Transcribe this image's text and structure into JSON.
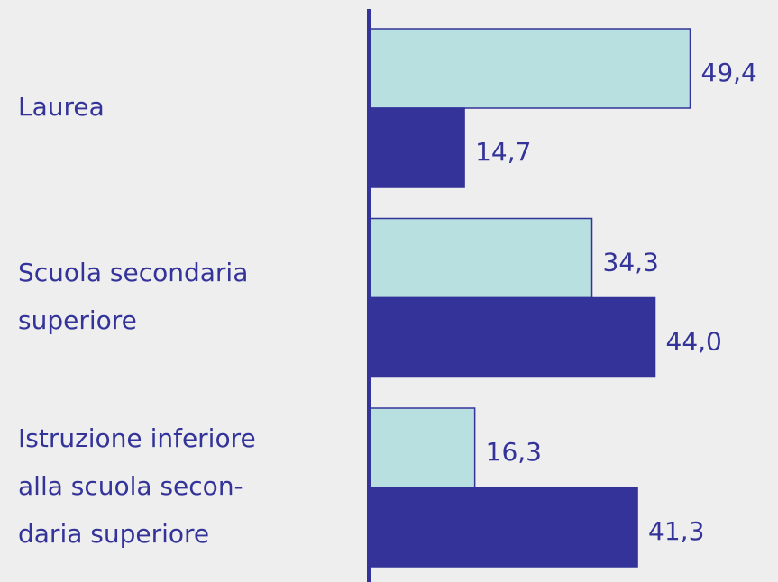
{
  "chart_data": {
    "type": "bar",
    "orientation": "horizontal",
    "categories": [
      [
        "Laurea"
      ],
      [
        "Scuola secondaria",
        "superiore"
      ],
      [
        "Istruzione inferiore",
        "alla scuola secon-",
        "daria superiore"
      ]
    ],
    "series": [
      {
        "color": "#b8e0e0",
        "values": [
          49.4,
          34.3,
          16.3
        ],
        "value_labels": [
          "49,4",
          "34,3",
          "16,3"
        ]
      },
      {
        "color": "#333399",
        "values": [
          14.7,
          44.0,
          41.3
        ],
        "value_labels": [
          "14,7",
          "44,0",
          "41,3"
        ]
      }
    ],
    "xlim": [
      0,
      60
    ]
  }
}
